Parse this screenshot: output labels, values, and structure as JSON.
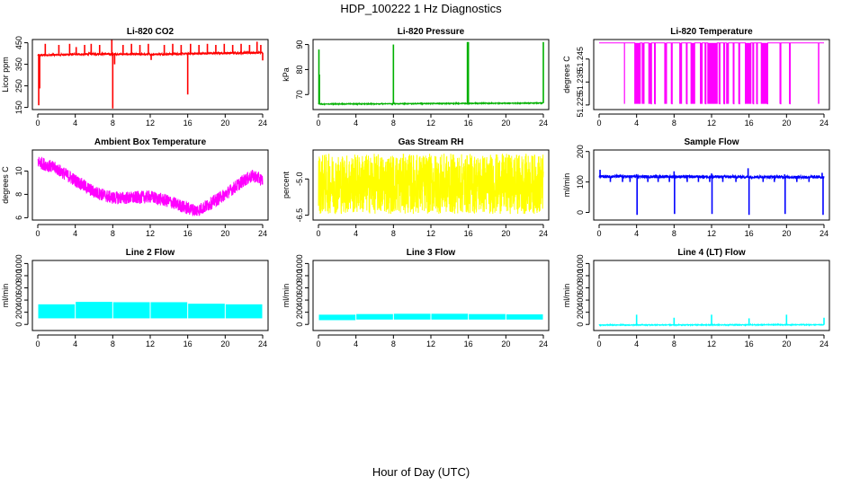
{
  "figure": {
    "title": "HDP_100222  1 Hz Diagnostics",
    "xlabel": "Hour of Day (UTC)"
  },
  "chart_data": [
    {
      "type": "line",
      "title": "Li-820 CO2",
      "ylabel": "Licor ppm",
      "color": "#ff0000",
      "xlim": [
        0,
        24
      ],
      "xticks": [
        0,
        4,
        8,
        12,
        16,
        20,
        24
      ],
      "ylim": [
        140,
        465
      ],
      "yticks": [
        150,
        250,
        350,
        450
      ],
      "baseline": [
        [
          0,
          392
        ],
        [
          6,
          398
        ],
        [
          12,
          396
        ],
        [
          18,
          401
        ],
        [
          24,
          404
        ]
      ],
      "noise": 5,
      "spikes": [
        [
          0.1,
          160
        ],
        [
          0.2,
          238
        ],
        [
          0.8,
          445
        ],
        [
          2.25,
          440
        ],
        [
          3.4,
          445
        ],
        [
          4.1,
          430
        ],
        [
          5.0,
          440
        ],
        [
          5.7,
          445
        ],
        [
          6.6,
          440
        ],
        [
          7.9,
          465
        ],
        [
          8.0,
          145
        ],
        [
          8.2,
          350
        ],
        [
          9.1,
          440
        ],
        [
          10.0,
          445
        ],
        [
          10.9,
          440
        ],
        [
          11.8,
          445
        ],
        [
          12.1,
          370
        ],
        [
          13.5,
          440
        ],
        [
          14.4,
          445
        ],
        [
          15.3,
          440
        ],
        [
          16.0,
          210
        ],
        [
          16.3,
          445
        ],
        [
          17.2,
          440
        ],
        [
          18.1,
          445
        ],
        [
          19.0,
          440
        ],
        [
          19.9,
          445
        ],
        [
          20.8,
          440
        ],
        [
          21.7,
          445
        ],
        [
          22.6,
          440
        ],
        [
          23.4,
          455
        ],
        [
          23.8,
          440
        ],
        [
          24.0,
          368
        ]
      ]
    },
    {
      "type": "line",
      "title": "Li-820 Pressure",
      "ylabel": "kPa",
      "color": "#00b000",
      "xlim": [
        0,
        24
      ],
      "xticks": [
        0,
        4,
        8,
        12,
        16,
        20,
        24
      ],
      "ylim": [
        64,
        92
      ],
      "yticks": [
        70,
        80,
        90
      ],
      "baseline": [
        [
          0,
          66.2
        ],
        [
          12,
          66.4
        ],
        [
          24,
          66.6
        ]
      ],
      "noise": 0.15,
      "spikes": [
        [
          0.05,
          88
        ],
        [
          0.1,
          78
        ],
        [
          8.0,
          90
        ],
        [
          15.9,
          91
        ],
        [
          16.0,
          91
        ],
        [
          24.0,
          91
        ]
      ]
    },
    {
      "type": "line",
      "title": "Li-820 Temperature",
      "ylabel": "degrees C",
      "color": "#ff00ff",
      "xlim": [
        0,
        24
      ],
      "xticks": [
        0,
        4,
        8,
        12,
        16,
        20,
        24
      ],
      "ylim": [
        51.223,
        51.2535
      ],
      "yticks": [
        51.225,
        51.235,
        51.245
      ],
      "yticklabels": [
        "51.225",
        "51.235",
        "51.245"
      ],
      "high": 51.252,
      "low": 51.2255,
      "dropouts": [
        [
          2.7,
          2.72
        ],
        [
          3.8,
          4.4
        ],
        [
          4.6,
          4.8
        ],
        [
          5.3,
          5.6
        ],
        [
          5.9,
          6.0
        ],
        [
          7.0,
          7.2
        ],
        [
          7.7,
          7.8
        ],
        [
          8.6,
          8.8
        ],
        [
          9.3,
          9.4
        ],
        [
          9.8,
          10.2
        ],
        [
          10.8,
          11.0
        ],
        [
          11.3,
          11.4
        ],
        [
          11.6,
          12.6
        ],
        [
          12.8,
          12.9
        ],
        [
          13.3,
          13.4
        ],
        [
          13.6,
          13.8
        ],
        [
          14.3,
          14.4
        ],
        [
          14.9,
          15.0
        ],
        [
          15.6,
          16.2
        ],
        [
          16.4,
          16.5
        ],
        [
          16.8,
          16.9
        ],
        [
          17.3,
          18.0
        ],
        [
          19.3,
          19.4
        ],
        [
          20.3,
          20.4
        ],
        [
          23.4,
          23.45
        ]
      ]
    },
    {
      "type": "line",
      "title": "Ambient Box Temperature",
      "ylabel": "degrees C",
      "color": "#ff00ff",
      "xlim": [
        0,
        24
      ],
      "xticks": [
        0,
        4,
        8,
        12,
        16,
        20,
        24
      ],
      "ylim": [
        5.8,
        11.8
      ],
      "yticks": [
        6,
        8,
        10
      ],
      "baseline": [
        [
          0,
          10.8
        ],
        [
          2,
          10.2
        ],
        [
          4,
          9.2
        ],
        [
          6,
          8.2
        ],
        [
          8,
          7.7
        ],
        [
          10,
          7.7
        ],
        [
          12,
          7.8
        ],
        [
          14,
          7.4
        ],
        [
          16,
          6.8
        ],
        [
          17,
          6.6
        ],
        [
          18,
          7.0
        ],
        [
          20,
          8.0
        ],
        [
          22,
          9.2
        ],
        [
          23,
          9.6
        ],
        [
          24,
          9.2
        ]
      ],
      "noise": 0.55,
      "spikes": []
    },
    {
      "type": "line",
      "title": "Gas Stream RH",
      "ylabel": "percent",
      "color": "#ffff00",
      "xlim": [
        0,
        24
      ],
      "xticks": [
        0,
        4,
        8,
        12,
        16,
        20,
        24
      ],
      "ylim": [
        -6.7,
        -3.8
      ],
      "yticks": [
        -6.5,
        -5.0
      ],
      "yticklabels": [
        "-6.5",
        "-5.0"
      ],
      "baseline": [
        [
          0,
          -5.2
        ],
        [
          24,
          -5.2
        ]
      ],
      "noise": 1.25,
      "spikes": []
    },
    {
      "type": "line",
      "title": "Sample Flow",
      "ylabel": "ml/min",
      "color": "#0000ff",
      "xlim": [
        0,
        24
      ],
      "xticks": [
        0,
        4,
        8,
        12,
        16,
        20,
        24
      ],
      "ylim": [
        -25,
        205
      ],
      "yticks": [
        0,
        100,
        200
      ],
      "baseline": [
        [
          0,
          118
        ],
        [
          24,
          116
        ]
      ],
      "noise": 5,
      "spikes": [
        [
          0.1,
          140
        ],
        [
          1.2,
          100
        ],
        [
          2.5,
          100
        ],
        [
          3.3,
          100
        ],
        [
          4.0,
          125
        ],
        [
          4.05,
          -8
        ],
        [
          5.2,
          100
        ],
        [
          6.3,
          100
        ],
        [
          7.5,
          100
        ],
        [
          8.0,
          135
        ],
        [
          8.05,
          -5
        ],
        [
          9.4,
          100
        ],
        [
          10.6,
          100
        ],
        [
          11.8,
          100
        ],
        [
          12.0,
          128
        ],
        [
          12.05,
          -5
        ],
        [
          13.2,
          100
        ],
        [
          14.6,
          100
        ],
        [
          15.9,
          145
        ],
        [
          16.0,
          -8
        ],
        [
          17.5,
          100
        ],
        [
          18.7,
          100
        ],
        [
          19.8,
          125
        ],
        [
          19.85,
          -5
        ],
        [
          21.1,
          100
        ],
        [
          22.4,
          100
        ],
        [
          23.8,
          130
        ],
        [
          23.9,
          -8
        ]
      ]
    },
    {
      "type": "band",
      "title": "Line 2 Flow",
      "ylabel": "ml/min",
      "color": "#00ffff",
      "xlim": [
        0,
        24
      ],
      "xticks": [
        0,
        4,
        8,
        12,
        16,
        20,
        24
      ],
      "ylim": [
        -100,
        1050
      ],
      "yticks": [
        0,
        200,
        400,
        600,
        800,
        1000
      ],
      "segments": [
        [
          0,
          4,
          100,
          330
        ],
        [
          4,
          8,
          100,
          370
        ],
        [
          8,
          12,
          100,
          365
        ],
        [
          12,
          16,
          100,
          365
        ],
        [
          16,
          20,
          100,
          340
        ],
        [
          20,
          24,
          100,
          330
        ]
      ]
    },
    {
      "type": "band",
      "title": "Line 3 Flow",
      "ylabel": "ml/min",
      "color": "#00ffff",
      "xlim": [
        0,
        24
      ],
      "xticks": [
        0,
        4,
        8,
        12,
        16,
        20,
        24
      ],
      "ylim": [
        -100,
        1050
      ],
      "yticks": [
        0,
        200,
        400,
        600,
        800,
        1000
      ],
      "segments": [
        [
          0,
          4,
          70,
          160
        ],
        [
          4,
          8,
          80,
          170
        ],
        [
          8,
          12,
          80,
          175
        ],
        [
          12,
          16,
          80,
          175
        ],
        [
          16,
          20,
          80,
          170
        ],
        [
          20,
          24,
          80,
          165
        ]
      ]
    },
    {
      "type": "line",
      "title": "Line 4 (LT) Flow",
      "ylabel": "ml/min",
      "color": "#00ffff",
      "xlim": [
        0,
        24
      ],
      "xticks": [
        0,
        4,
        8,
        12,
        16,
        20,
        24
      ],
      "ylim": [
        -100,
        1050
      ],
      "yticks": [
        0,
        200,
        400,
        600,
        800,
        1000
      ],
      "baseline": [
        [
          0,
          -10
        ],
        [
          24,
          -5
        ]
      ],
      "noise": 6,
      "spikes": [
        [
          4.0,
          160
        ],
        [
          8.0,
          110
        ],
        [
          12.0,
          160
        ],
        [
          16.0,
          100
        ],
        [
          20.0,
          160
        ],
        [
          24.0,
          110
        ]
      ]
    }
  ]
}
